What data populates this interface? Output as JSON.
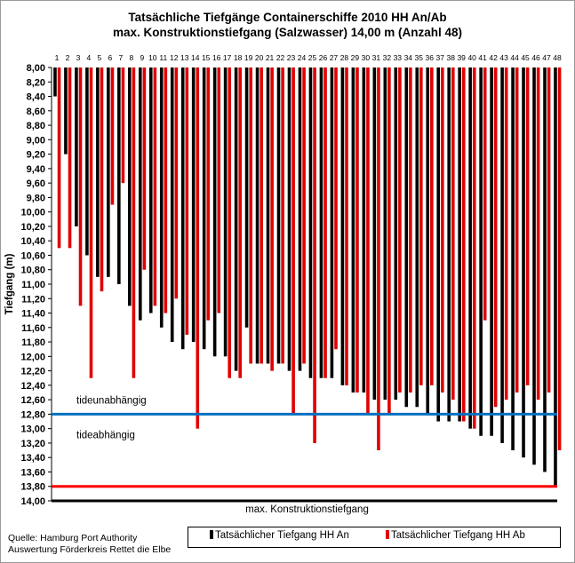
{
  "chart_data": {
    "type": "bar",
    "title_line1": "Tatsächliche Tiefgänge Containerschiffe 2010 HH An/Ab",
    "title_line2": "max. Konstruktionstiefgang (Salzwasser) 14,00 m (Anzahl 48)",
    "ylabel": "Tiefgang (m)",
    "y_axis": {
      "min": 8.0,
      "max": 14.0,
      "step": 0.2,
      "inverted": true,
      "decimal_separator": ","
    },
    "categories": [
      "1",
      "2",
      "3",
      "4",
      "5",
      "6",
      "7",
      "8",
      "9",
      "10",
      "11",
      "12",
      "13",
      "14",
      "15",
      "16",
      "17",
      "18",
      "19",
      "20",
      "21",
      "22",
      "23",
      "24",
      "25",
      "26",
      "27",
      "28",
      "29",
      "30",
      "31",
      "32",
      "33",
      "34",
      "35",
      "36",
      "37",
      "38",
      "39",
      "40",
      "41",
      "42",
      "43",
      "44",
      "45",
      "46",
      "47",
      "48"
    ],
    "series": [
      {
        "name": "Tatsächlicher Tiefgang HH An",
        "color": "#000000",
        "values": [
          8.4,
          9.2,
          10.2,
          10.6,
          10.9,
          10.9,
          11.0,
          11.3,
          11.5,
          11.4,
          11.6,
          11.8,
          11.9,
          11.8,
          11.9,
          12.0,
          12.0,
          12.2,
          11.6,
          12.1,
          12.1,
          12.1,
          12.2,
          12.2,
          12.3,
          12.3,
          12.3,
          12.4,
          12.5,
          12.5,
          12.6,
          12.6,
          12.6,
          12.7,
          12.7,
          12.8,
          12.9,
          12.9,
          12.9,
          13.0,
          13.1,
          13.1,
          13.2,
          13.3,
          13.4,
          13.5,
          13.6,
          13.8
        ]
      },
      {
        "name": "Tatsächlicher Tiefgang HH Ab",
        "color": "#e00000",
        "values": [
          10.5,
          10.5,
          11.3,
          12.3,
          11.1,
          9.9,
          9.6,
          12.3,
          10.8,
          11.3,
          11.4,
          11.2,
          11.7,
          13.0,
          11.5,
          11.4,
          12.3,
          12.3,
          12.1,
          12.1,
          12.2,
          12.1,
          12.8,
          12.1,
          13.2,
          12.3,
          11.9,
          12.4,
          12.5,
          12.8,
          13.3,
          12.8,
          12.5,
          12.5,
          12.4,
          12.4,
          12.5,
          12.6,
          12.9,
          13.0,
          11.5,
          12.7,
          12.6,
          12.5,
          12.4,
          12.6,
          12.5,
          13.3
        ]
      }
    ],
    "reference_lines": [
      {
        "value": 12.8,
        "color": "#0070c0",
        "label_above": "tideunabhängig",
        "label_below": "tideabhängig"
      },
      {
        "value": 13.8,
        "color": "#ff0000"
      },
      {
        "value": 14.0,
        "color": "#000000",
        "label_below": "max. Konstruktionstiefgang"
      }
    ],
    "legend_position": "bottom-right",
    "grid": false
  },
  "source": {
    "line1": "Quelle: Hamburg Port Authority",
    "line2": "Auswertung Förderkreis Rettet die Elbe"
  }
}
